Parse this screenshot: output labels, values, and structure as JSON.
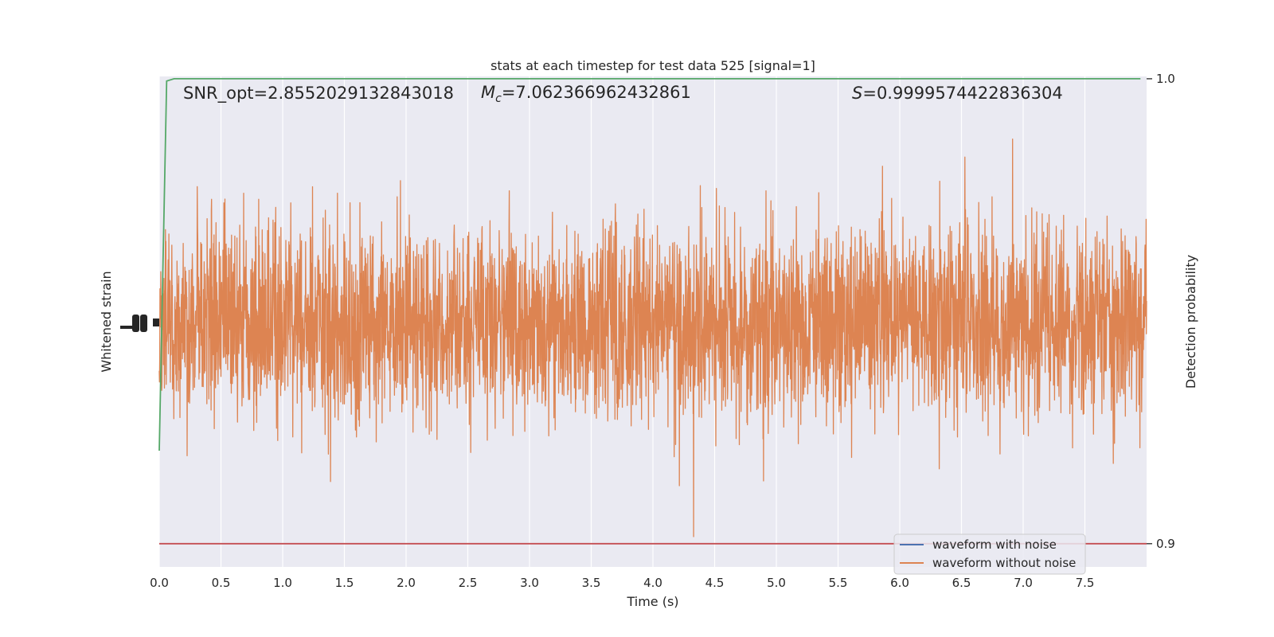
{
  "chart_data": {
    "type": "line",
    "title": "stats at each timestep for test data 525 [signal=1]",
    "xlabel": "Time (s)",
    "ylabel_left": "Whitened strain",
    "ylabel_right": "Detection probability",
    "xlim": [
      0.0,
      8.0
    ],
    "x_ticks": [
      "0.0",
      "0.5",
      "1.0",
      "1.5",
      "2.0",
      "2.5",
      "3.0",
      "3.5",
      "4.0",
      "4.5",
      "5.0",
      "5.5",
      "6.0",
      "6.5",
      "7.0",
      "7.5"
    ],
    "y_right_lim": [
      0.895,
      1.0005
    ],
    "y_right_ticks": [
      "1.0",
      "0.9"
    ],
    "grid": true,
    "annotations": {
      "snr": "SNR_opt=2.8552029132843018",
      "mc_symbol": "M",
      "mc_sub": "c",
      "mc_value": "=7.062366962432861",
      "s_symbol": "S",
      "s_value": "=0.9999574422836304"
    },
    "series": [
      {
        "name": "waveform with noise",
        "color": "#4c72b0"
      },
      {
        "name": "waveform without noise",
        "color": "#dd8452"
      },
      {
        "color": "#55a868",
        "points": [
          [
            0.0,
            0.92
          ],
          [
            0.06,
            0.9995
          ],
          [
            0.12,
            1.0
          ],
          [
            7.95,
            1.0
          ]
        ]
      },
      {
        "color": "#c44e52",
        "points": [
          [
            0.0,
            0.9
          ],
          [
            8.0,
            0.9
          ]
        ]
      }
    ],
    "legend": {
      "placement": "lower-right"
    },
    "colors": {
      "plot_bg": "#eaeaf2",
      "grid": "#ffffff"
    }
  }
}
